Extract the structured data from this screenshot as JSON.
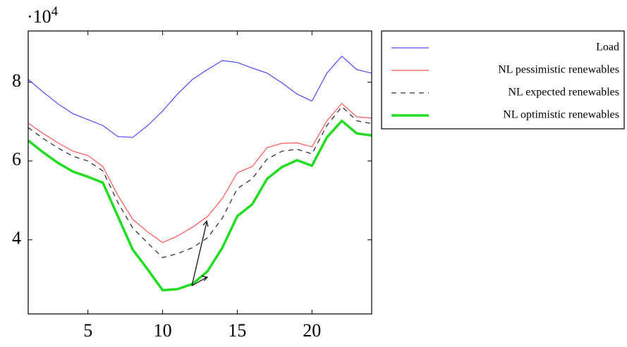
{
  "chart_data": {
    "type": "line",
    "axis_multiplier": {
      "base": "·10",
      "exponent": "4"
    },
    "x": [
      1,
      2,
      3,
      4,
      5,
      6,
      7,
      8,
      9,
      10,
      11,
      12,
      13,
      14,
      15,
      16,
      17,
      18,
      19,
      20,
      21,
      22,
      23,
      24
    ],
    "series": [
      {
        "name": "Load",
        "color": "#4a4aff",
        "line_style": "solid",
        "values": [
          8.07,
          7.75,
          7.45,
          7.2,
          7.05,
          6.9,
          6.62,
          6.6,
          6.9,
          7.27,
          7.7,
          8.07,
          8.32,
          8.55,
          8.5,
          8.36,
          8.23,
          7.98,
          7.7,
          7.52,
          8.23,
          8.66,
          8.32,
          8.23
        ]
      },
      {
        "name": "NL pessimistic renewables",
        "color": "#ff5555",
        "line_style": "solid",
        "values": [
          6.96,
          6.7,
          6.46,
          6.25,
          6.14,
          5.86,
          5.13,
          4.52,
          4.2,
          3.93,
          4.1,
          4.32,
          4.59,
          5.05,
          5.7,
          5.86,
          6.34,
          6.45,
          6.46,
          6.36,
          7.02,
          7.46,
          7.12,
          7.09
        ]
      },
      {
        "name": "NL expected renewables",
        "color": "#333333",
        "line_style": "dashed",
        "values": [
          6.85,
          6.57,
          6.33,
          6.12,
          6.0,
          5.75,
          4.95,
          4.3,
          3.92,
          3.55,
          3.65,
          3.8,
          4.05,
          4.55,
          5.3,
          5.55,
          6.05,
          6.25,
          6.3,
          6.18,
          6.9,
          7.38,
          7.02,
          6.95
        ]
      },
      {
        "name": "NL optimistic renewables",
        "color": "#22dd22",
        "line_style": "bold",
        "values": [
          6.52,
          6.22,
          5.95,
          5.73,
          5.6,
          5.45,
          4.6,
          3.75,
          3.25,
          2.72,
          2.75,
          2.88,
          3.2,
          3.8,
          4.6,
          4.9,
          5.55,
          5.85,
          6.02,
          5.88,
          6.6,
          7.02,
          6.7,
          6.65
        ]
      }
    ],
    "xlim": [
      1,
      24
    ],
    "ylim": [
      2.12,
      9.3
    ],
    "xticks": [
      5,
      10,
      15,
      20
    ],
    "yticks": [
      4,
      6,
      8
    ],
    "legend": "outside-right"
  }
}
